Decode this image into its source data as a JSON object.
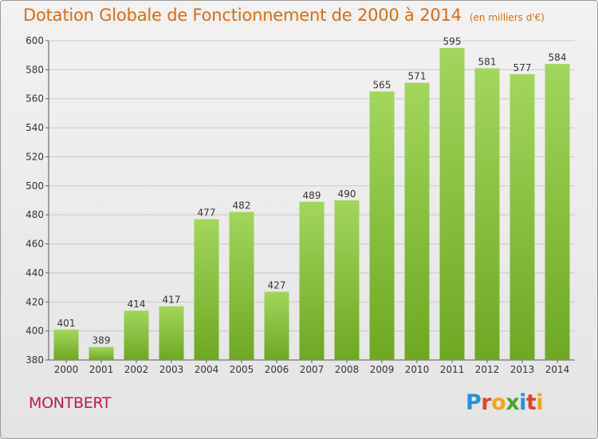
{
  "header": {
    "title": "Dotation Globale de Fonctionnement de 2000 à 2014",
    "unit": "(en milliers d'€)"
  },
  "footer": {
    "commune": "MONTBERT",
    "logo_letters": [
      {
        "ch": "P",
        "color": "#2b8fd6"
      },
      {
        "ch": "r",
        "color": "#e4412e"
      },
      {
        "ch": "o",
        "color": "#f2a41d"
      },
      {
        "ch": "x",
        "color": "#4aa52e"
      },
      {
        "ch": "i",
        "color": "#2b8fd6"
      },
      {
        "ch": "t",
        "color": "#e4412e"
      },
      {
        "ch": "i",
        "color": "#f2a41d"
      }
    ]
  },
  "colors": {
    "bar_light": "#a2d65c",
    "bar_dark": "#6ea823",
    "title": "#e06a12",
    "commune": "#c2185b",
    "grid": "#c8c8c8"
  },
  "chart_data": {
    "type": "bar",
    "title": "Dotation Globale de Fonctionnement de 2000 à 2014",
    "subtitle": "(en milliers d'€)",
    "categories": [
      "2000",
      "2001",
      "2002",
      "2003",
      "2004",
      "2005",
      "2006",
      "2007",
      "2008",
      "2009",
      "2010",
      "2011",
      "2012",
      "2013",
      "2014"
    ],
    "values": [
      401,
      389,
      414,
      417,
      477,
      482,
      427,
      489,
      490,
      565,
      571,
      595,
      581,
      577,
      584
    ],
    "ylim": [
      380,
      600
    ],
    "yticks": [
      380,
      400,
      420,
      440,
      460,
      480,
      500,
      520,
      540,
      560,
      580,
      600
    ],
    "grid": true,
    "xlabel": "",
    "ylabel": ""
  }
}
